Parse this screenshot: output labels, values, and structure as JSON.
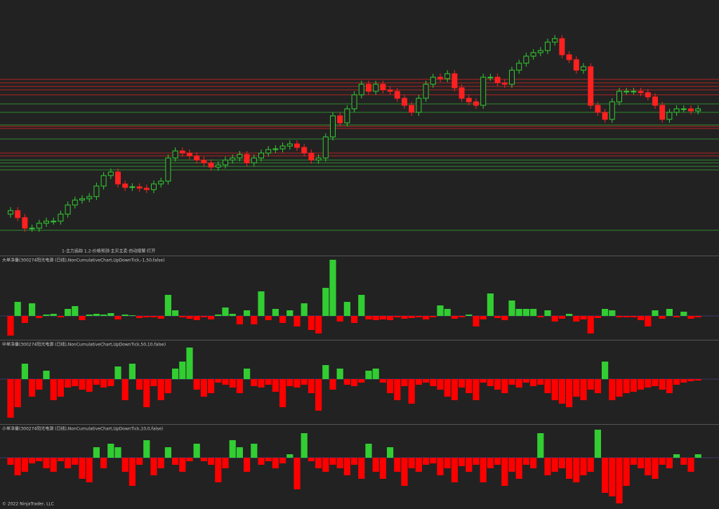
{
  "chart_data": [
    {
      "type": "candlestick",
      "title": "1-主力追踪 1.2-价格预测·主买主卖·自动报警·打开",
      "open": [
        35,
        40,
        30,
        15,
        15,
        22,
        25,
        25,
        35,
        48,
        55,
        57,
        60,
        75,
        90,
        95,
        78,
        73,
        74,
        72,
        70,
        78,
        82,
        115,
        125,
        122,
        118,
        112,
        108,
        102,
        105,
        112,
        115,
        120,
        108,
        115,
        122,
        127,
        128,
        132,
        135,
        130,
        122,
        112,
        115,
        145,
        175,
        165,
        185,
        205,
        220,
        210,
        220,
        212,
        210,
        200,
        190,
        180,
        200,
        220,
        230,
        228,
        235,
        215,
        200,
        195,
        190,
        230,
        230,
        222,
        220,
        240,
        250,
        260,
        265,
        268,
        280,
        285,
        262,
        255,
        240,
        245,
        190,
        180,
        170,
        195,
        210,
        210,
        210,
        208,
        202,
        190,
        170,
        180,
        185,
        185,
        182
      ],
      "high": [
        45,
        45,
        35,
        20,
        27,
        30,
        30,
        40,
        53,
        60,
        62,
        65,
        80,
        95,
        100,
        100,
        83,
        79,
        79,
        77,
        83,
        87,
        120,
        130,
        130,
        127,
        123,
        117,
        113,
        110,
        117,
        120,
        125,
        125,
        120,
        127,
        132,
        133,
        137,
        140,
        140,
        135,
        127,
        120,
        150,
        180,
        180,
        190,
        210,
        225,
        225,
        225,
        225,
        217,
        215,
        205,
        195,
        205,
        225,
        235,
        235,
        240,
        240,
        220,
        205,
        200,
        235,
        235,
        235,
        227,
        245,
        255,
        265,
        270,
        273,
        285,
        290,
        290,
        267,
        260,
        250,
        250,
        195,
        185,
        200,
        215,
        215,
        215,
        215,
        213,
        207,
        195,
        185,
        190,
        190,
        190,
        190
      ],
      "low": [
        30,
        25,
        10,
        10,
        10,
        17,
        20,
        20,
        30,
        43,
        50,
        52,
        55,
        70,
        85,
        73,
        68,
        68,
        67,
        65,
        65,
        73,
        77,
        110,
        117,
        113,
        107,
        103,
        97,
        97,
        100,
        107,
        110,
        103,
        103,
        110,
        117,
        122,
        123,
        127,
        125,
        117,
        107,
        107,
        110,
        140,
        160,
        160,
        180,
        200,
        205,
        205,
        207,
        205,
        195,
        185,
        175,
        175,
        195,
        215,
        223,
        223,
        210,
        195,
        190,
        185,
        185,
        225,
        217,
        215,
        215,
        235,
        245,
        255,
        260,
        263,
        275,
        257,
        250,
        235,
        235,
        185,
        175,
        165,
        165,
        190,
        205,
        205,
        203,
        197,
        185,
        165,
        165,
        175,
        180,
        177,
        177
      ],
      "close": [
        40,
        30,
        15,
        15,
        22,
        25,
        25,
        35,
        48,
        55,
        57,
        60,
        75,
        90,
        95,
        78,
        73,
        74,
        72,
        70,
        78,
        82,
        115,
        125,
        122,
        118,
        112,
        108,
        102,
        105,
        112,
        115,
        120,
        108,
        115,
        122,
        127,
        128,
        132,
        135,
        130,
        122,
        112,
        115,
        145,
        175,
        165,
        185,
        205,
        220,
        210,
        220,
        212,
        210,
        200,
        190,
        180,
        200,
        220,
        230,
        228,
        235,
        215,
        200,
        195,
        190,
        230,
        230,
        222,
        220,
        240,
        250,
        260,
        265,
        268,
        280,
        285,
        262,
        255,
        240,
        245,
        190,
        180,
        170,
        195,
        210,
        210,
        210,
        208,
        202,
        190,
        170,
        180,
        185,
        185,
        182,
        185
      ],
      "up_color": "#32cd32",
      "down_color": "#ff2020",
      "levels": [
        {
          "color": "#b22222",
          "values": [
            227,
            222,
            217,
            212,
            205,
            160,
            157,
            122,
            118
          ]
        },
        {
          "color": "#2e8b2e",
          "values": [
            192,
            180,
            162,
            142,
            112,
            108,
            103,
            98,
            12
          ]
        }
      ],
      "ylim": [
        -20,
        340
      ]
    },
    {
      "type": "bar",
      "title": "大单净量(300274阳光电源 (日线),NonCumulativeChart,UpDownTick,-1,50,false)",
      "values": [
        -28,
        20,
        -10,
        18,
        -3,
        2,
        3,
        -2,
        10,
        14,
        -6,
        2,
        3,
        2,
        4,
        -5,
        2,
        1,
        -3,
        -2,
        -2,
        -4,
        30,
        8,
        -2,
        -4,
        -6,
        -2,
        -5,
        2,
        12,
        3,
        -12,
        8,
        -12,
        35,
        -6,
        10,
        -10,
        8,
        -15,
        18,
        -20,
        -25,
        40,
        80,
        -8,
        20,
        -10,
        30,
        -5,
        -6,
        -5,
        -6,
        -2,
        -4,
        -3,
        -2,
        -5,
        -2,
        15,
        10,
        -4,
        -2,
        2,
        -15,
        -5,
        32,
        -3,
        -6,
        22,
        10,
        10,
        10,
        -2,
        8,
        -8,
        -4,
        3,
        -8,
        -5,
        -25,
        -3,
        10,
        8,
        -2,
        -2,
        -2,
        -6,
        -15,
        8,
        -4,
        10,
        -2,
        6,
        -4,
        -2
      ],
      "up_color": "#32cd32",
      "down_color": "#ff0000",
      "ylim": [
        -35,
        85
      ]
    },
    {
      "type": "bar",
      "title": "中单净量(300274阳光电源 (日线),NonCumulativeChart,UpDownTick,50,10,false)",
      "values": [
        -55,
        -40,
        22,
        -25,
        -15,
        12,
        -30,
        -25,
        -12,
        -10,
        -15,
        -18,
        -8,
        -12,
        -10,
        18,
        -30,
        22,
        -15,
        -40,
        -10,
        -30,
        -20,
        15,
        25,
        45,
        -15,
        -25,
        -20,
        -5,
        -8,
        -12,
        -20,
        15,
        -10,
        -12,
        -8,
        -18,
        -40,
        -10,
        -12,
        -8,
        -20,
        -45,
        20,
        -15,
        15,
        -8,
        -10,
        -5,
        12,
        15,
        -5,
        -20,
        -30,
        -10,
        -35,
        -8,
        -5,
        -10,
        -15,
        -25,
        -30,
        -12,
        -20,
        -30,
        -5,
        -10,
        -15,
        -20,
        -8,
        -12,
        -5,
        -10,
        -8,
        -20,
        -30,
        -35,
        -40,
        -25,
        -30,
        -15,
        -20,
        25,
        -30,
        -25,
        -20,
        -18,
        -15,
        -12,
        -10,
        -15,
        -20,
        -8,
        -5,
        -3,
        -2
      ],
      "up_color": "#32cd32",
      "down_color": "#ff0000",
      "ylim": [
        -65,
        55
      ]
    },
    {
      "type": "bar",
      "title": "小单净量(300274阳光电源 (日线),NonCumulativeChart,UpDownTick,10,0,false)",
      "values": [
        -10,
        -25,
        -20,
        -8,
        -5,
        -15,
        -20,
        -5,
        -15,
        -10,
        -30,
        -35,
        15,
        -15,
        20,
        15,
        -20,
        -40,
        -10,
        25,
        -25,
        -15,
        15,
        -10,
        -20,
        -5,
        20,
        -5,
        -10,
        -35,
        -15,
        25,
        15,
        -20,
        20,
        -10,
        -5,
        -15,
        -8,
        5,
        -45,
        35,
        -5,
        -15,
        -20,
        -10,
        -15,
        -25,
        -10,
        -30,
        20,
        -20,
        -30,
        15,
        -20,
        -40,
        -15,
        -20,
        -10,
        -8,
        -25,
        -15,
        -35,
        -12,
        -20,
        -10,
        -35,
        -15,
        -10,
        -40,
        -20,
        -30,
        -10,
        -15,
        35,
        -25,
        -20,
        -15,
        -30,
        -35,
        -25,
        -20,
        40,
        -50,
        -55,
        -65,
        -40,
        -10,
        -15,
        -25,
        -30,
        -10,
        -15,
        5,
        -10,
        -20,
        5
      ],
      "up_color": "#32cd32",
      "down_color": "#ff0000",
      "ylim": [
        -73,
        47
      ]
    }
  ],
  "footer": "© 2022 NinjaTrader, LLC"
}
